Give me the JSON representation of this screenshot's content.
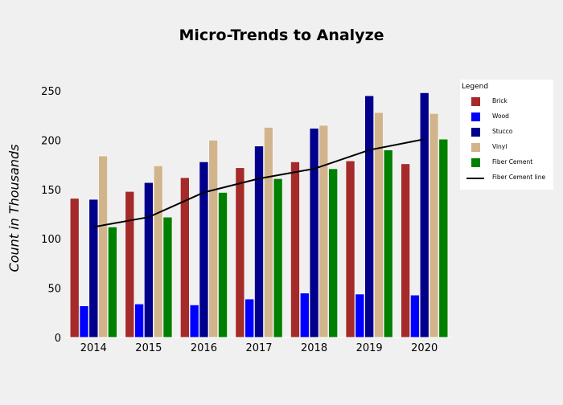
{
  "chart_data": {
    "type": "bar",
    "title": "Micro-Trends to Analyze",
    "xlabel": "",
    "ylabel": "Count in Thousands",
    "categories": [
      "2014",
      "2015",
      "2016",
      "2017",
      "2018",
      "2019",
      "2020"
    ],
    "yticks": [
      "0",
      "50",
      "100",
      "150",
      "200",
      "250"
    ],
    "ylim": [
      0,
      260
    ],
    "grid": false,
    "legend_position": "top-right",
    "series": [
      {
        "name": "Brick",
        "color": "#a52a2a",
        "values": [
          141,
          148,
          162,
          172,
          178,
          179,
          176
        ]
      },
      {
        "name": "Wood",
        "color": "#0000ff",
        "values": [
          32,
          34,
          33,
          39,
          45,
          44,
          43
        ]
      },
      {
        "name": "Stucco",
        "color": "#00008b",
        "values": [
          140,
          157,
          178,
          194,
          212,
          245,
          248
        ]
      },
      {
        "name": "Vinyl",
        "color": "#d2b48c",
        "values": [
          184,
          174,
          200,
          213,
          215,
          228,
          227
        ]
      },
      {
        "name": "Fiber Cement",
        "color": "#008000",
        "values": [
          112,
          122,
          147,
          161,
          171,
          190,
          201
        ]
      }
    ],
    "line_series": {
      "name": "Fiber Cement line",
      "color": "#000000",
      "values": [
        112,
        122,
        147,
        161,
        171,
        190,
        201
      ]
    }
  },
  "legend": {
    "title": "Legend",
    "items": [
      "Brick",
      "Wood",
      "Stucco",
      "Vinyl",
      "Fiber Cement",
      "Fiber Cement line"
    ]
  }
}
